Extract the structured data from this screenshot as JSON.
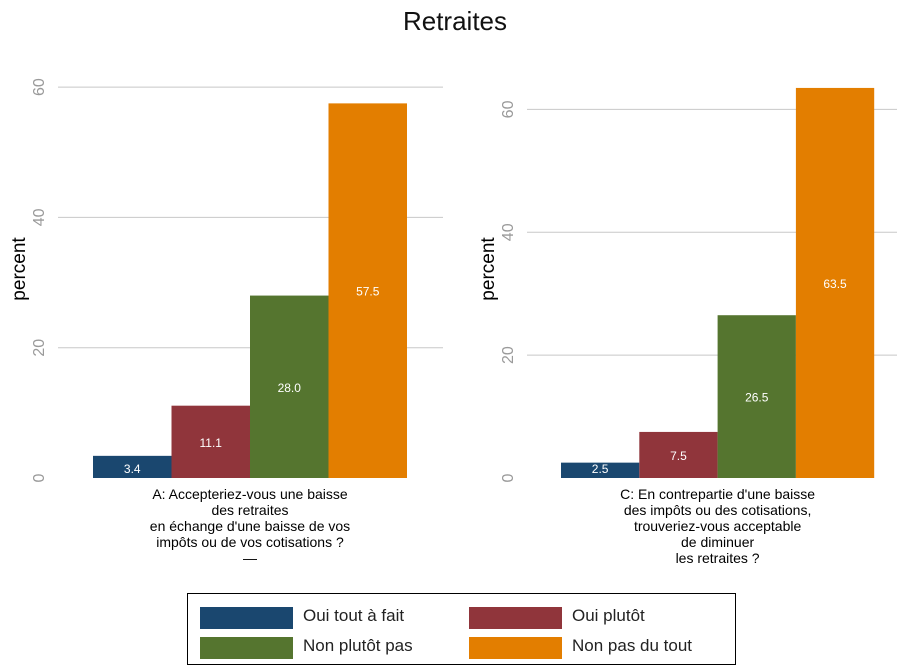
{
  "title": "Retraites",
  "legend": [
    {
      "label": "Oui tout à fait",
      "color": "#1a476f"
    },
    {
      "label": "Oui plutôt",
      "color": "#90353b"
    },
    {
      "label": "Non plutôt pas",
      "color": "#55752f"
    },
    {
      "label": "Non pas du tout",
      "color": "#e37e00"
    }
  ],
  "chart_data": [
    {
      "type": "bar",
      "ylabel": "percent",
      "yticks": [
        0,
        20,
        40,
        60
      ],
      "ylim": [
        0,
        66
      ],
      "grid": true,
      "categories": [
        "Oui tout à fait",
        "Oui plutôt",
        "Non plutôt pas",
        "Non pas du tout"
      ],
      "values": [
        3.4,
        11.1,
        28.0,
        57.5
      ],
      "value_labels": [
        "3.4",
        "11.1",
        "28.0",
        "57.5"
      ],
      "xlabel_lines": [
        "A: Accepteriez-vous une baisse",
        "des retraites",
        "en échange d'une baisse de vos",
        "impôts ou de vos cotisations ?",
        "—"
      ]
    },
    {
      "type": "bar",
      "ylabel": "percent",
      "yticks": [
        0,
        20,
        40,
        60
      ],
      "ylim": [
        0,
        70
      ],
      "grid": true,
      "categories": [
        "Oui tout à fait",
        "Oui plutôt",
        "Non plutôt pas",
        "Non pas du tout"
      ],
      "values": [
        2.5,
        7.5,
        26.5,
        63.5
      ],
      "value_labels": [
        "2.5",
        "7.5",
        "26.5",
        "63.5"
      ],
      "xlabel_lines": [
        "C: En contrepartie d'une baisse",
        "des impôts ou des cotisations,",
        "trouveriez-vous acceptable",
        "de diminuer",
        "les retraites ?"
      ]
    }
  ]
}
